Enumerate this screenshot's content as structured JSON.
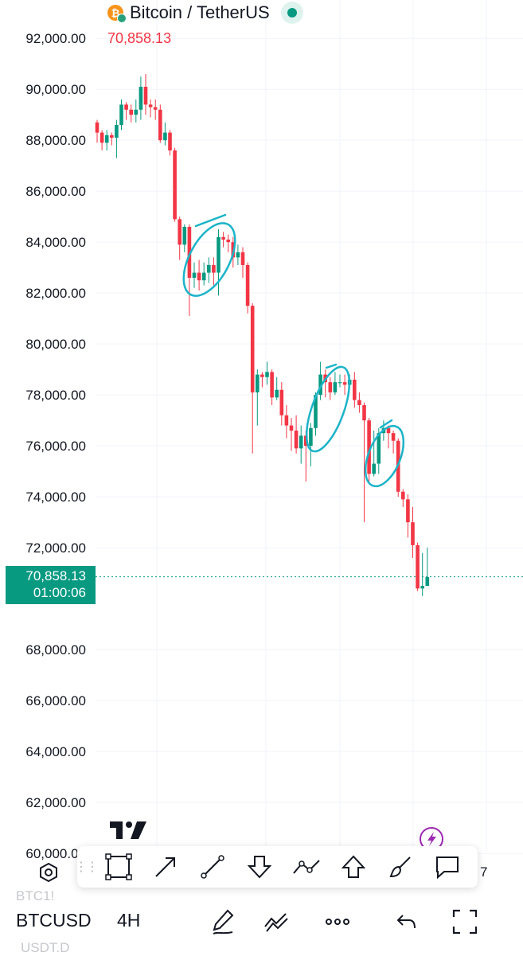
{
  "header": {
    "pair_title": "Bitcoin / TetherUS",
    "last_price": "70,858.13",
    "coin_icon": "bitcoin-icon"
  },
  "price_tag": {
    "price": "70,858.13",
    "countdown": "01:00:06"
  },
  "colors": {
    "up": "#089981",
    "down": "#f23645",
    "annotation": "#1cb4c8",
    "grid": "#f0f3fa",
    "axis_text": "#131722"
  },
  "chart_data": {
    "type": "candlestick",
    "symbol": "BTCUSD",
    "interval": "4H",
    "y_ticks": [
      "92,000.00",
      "90,000.00",
      "88,000.00",
      "86,000.00",
      "84,000.00",
      "82,000.00",
      "80,000.00",
      "78,000.00",
      "76,000.00",
      "74,000.00",
      "72,000.00",
      "68,000.00",
      "66,000.00",
      "64,000.00",
      "62,000.00",
      "60,000.00"
    ],
    "ylim": [
      59800,
      92800
    ],
    "current_price": 70858.13,
    "candles": [
      [
        88700,
        88300,
        88800,
        87900
      ],
      [
        88300,
        87900,
        88400,
        87600
      ],
      [
        87900,
        88200,
        88400,
        87600
      ],
      [
        88200,
        88100,
        88300,
        87800
      ],
      [
        88100,
        88600,
        88800,
        87300
      ],
      [
        88600,
        89400,
        89600,
        88400
      ],
      [
        89400,
        89200,
        89500,
        88800
      ],
      [
        89200,
        89000,
        89400,
        88700
      ],
      [
        89000,
        89200,
        89600,
        88700
      ],
      [
        89200,
        90100,
        90500,
        88800
      ],
      [
        90100,
        89400,
        90600,
        89000
      ],
      [
        89400,
        89300,
        89600,
        88900
      ],
      [
        89300,
        89200,
        89600,
        88800
      ],
      [
        89200,
        88000,
        89400,
        87900
      ],
      [
        88000,
        88300,
        88700,
        87800
      ],
      [
        88300,
        87600,
        88400,
        87400
      ],
      [
        87600,
        84900,
        87700,
        84800
      ],
      [
        84900,
        83900,
        85000,
        83300
      ],
      [
        83900,
        84600,
        84700,
        83600
      ],
      [
        84600,
        82600,
        84700,
        81100
      ],
      [
        82600,
        82800,
        83200,
        82200
      ],
      [
        82800,
        82500,
        83300,
        82100
      ],
      [
        82500,
        82800,
        83200,
        82300
      ],
      [
        82800,
        83100,
        83400,
        82400
      ],
      [
        83100,
        82800,
        83400,
        82300
      ],
      [
        82800,
        84200,
        84500,
        81900
      ],
      [
        84200,
        84100,
        84400,
        83800
      ],
      [
        84100,
        84000,
        84300,
        83600
      ],
      [
        84000,
        83400,
        84200,
        83000
      ],
      [
        83400,
        83600,
        83900,
        83100
      ],
      [
        83600,
        83100,
        83800,
        82600
      ],
      [
        83100,
        81500,
        83200,
        81200
      ],
      [
        81500,
        78100,
        81600,
        75700
      ],
      [
        78100,
        78800,
        79000,
        76800
      ],
      [
        78800,
        78700,
        78900,
        78300
      ],
      [
        78700,
        78900,
        79300,
        78400
      ],
      [
        78900,
        77900,
        79000,
        77600
      ],
      [
        77900,
        78200,
        78700,
        77800
      ],
      [
        78200,
        77200,
        78500,
        76800
      ],
      [
        77200,
        76800,
        77600,
        76300
      ],
      [
        76800,
        76600,
        77100,
        75800
      ],
      [
        76600,
        75900,
        77200,
        75700
      ],
      [
        75900,
        76400,
        76800,
        75300
      ],
      [
        76400,
        76000,
        76600,
        74600
      ],
      [
        76000,
        76700,
        76900,
        75200
      ],
      [
        76700,
        78000,
        78100,
        76400
      ],
      [
        78000,
        78800,
        79300,
        77800
      ],
      [
        78800,
        78500,
        79000,
        77900
      ],
      [
        78500,
        78100,
        78700,
        77800
      ],
      [
        78100,
        78500,
        78900,
        78000
      ],
      [
        78500,
        78500,
        78800,
        78300
      ],
      [
        78500,
        78400,
        78800,
        78000
      ],
      [
        78400,
        78600,
        78800,
        78300
      ],
      [
        78600,
        77800,
        78900,
        77500
      ],
      [
        77800,
        77600,
        78100,
        77300
      ],
      [
        77600,
        77000,
        77700,
        73000
      ],
      [
        77000,
        74900,
        77100,
        74500
      ],
      [
        74900,
        75300,
        76600,
        74800
      ],
      [
        75300,
        76500,
        76700,
        74900
      ],
      [
        76500,
        76700,
        77000,
        76200
      ],
      [
        76700,
        76500,
        76800,
        75900
      ],
      [
        76500,
        76200,
        76600,
        75700
      ],
      [
        76200,
        74200,
        76300,
        74000
      ],
      [
        74200,
        73900,
        74300,
        73600
      ],
      [
        73900,
        73000,
        74100,
        72400
      ],
      [
        73000,
        72100,
        73600,
        71600
      ],
      [
        72100,
        70400,
        72200,
        70300
      ],
      [
        70400,
        70500,
        71800,
        70100
      ],
      [
        70500,
        70850,
        72000,
        70500
      ]
    ],
    "annotations": [
      {
        "shape": "ellipse",
        "around": "82,000-84,500 rebound"
      },
      {
        "shape": "ellipse",
        "around": "76,500-79,000 rebound"
      },
      {
        "shape": "ellipse",
        "around": "74,800-77,000 rebound"
      }
    ]
  },
  "drawing_toolbar": {
    "tools": [
      "rectangle-icon",
      "arrow-icon",
      "trend-line-icon",
      "arrow-down-icon",
      "path-icon",
      "arrow-up-icon",
      "brush-icon",
      "callout-icon"
    ]
  },
  "bottom_bar": {
    "symbol": "BTCUSD",
    "interval": "4H",
    "ghost_top": "BTC1!",
    "ghost_bottom": "USDT.D",
    "side_number": "7"
  }
}
